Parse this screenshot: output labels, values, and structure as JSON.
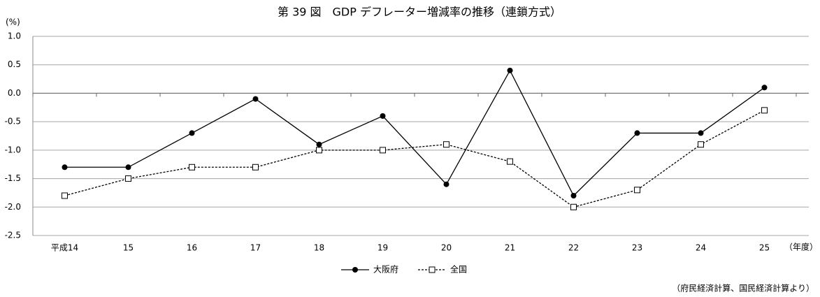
{
  "chart_data": {
    "type": "line",
    "title": "第 39 図　GDP デフレーター増減率の推移（連鎖方式）",
    "y_label": "(%)",
    "x_label": "（年度）",
    "source": "（府民経済計算、国民経済計算より）",
    "categories": [
      "平成14",
      "15",
      "16",
      "17",
      "18",
      "19",
      "20",
      "21",
      "22",
      "23",
      "24",
      "25"
    ],
    "series": [
      {
        "name": "大阪府",
        "color": "#000000",
        "marker": "circle",
        "dashed": false,
        "values": [
          -1.3,
          -1.3,
          -0.7,
          -0.1,
          -0.9,
          -0.4,
          -1.6,
          0.4,
          -1.8,
          -0.7,
          -0.7,
          0.1
        ]
      },
      {
        "name": "全国",
        "color": "#000000",
        "marker": "square",
        "dashed": true,
        "values": [
          -1.8,
          -1.5,
          -1.3,
          -1.3,
          -1.0,
          -1.0,
          -0.9,
          -1.2,
          -2.0,
          -1.7,
          -0.9,
          -0.3
        ]
      }
    ],
    "ylim": [
      -2.5,
      1
    ],
    "yticks": [
      {
        "value": 1,
        "label": "1.0"
      },
      0.5,
      {
        "value": 0,
        "label": "0.0"
      },
      -0.5,
      {
        "value": -1,
        "label": "-1.0"
      },
      -1.5,
      {
        "value": -2,
        "label": "-2.0"
      },
      -2.5
    ],
    "grid": true,
    "legend": "bottom"
  }
}
